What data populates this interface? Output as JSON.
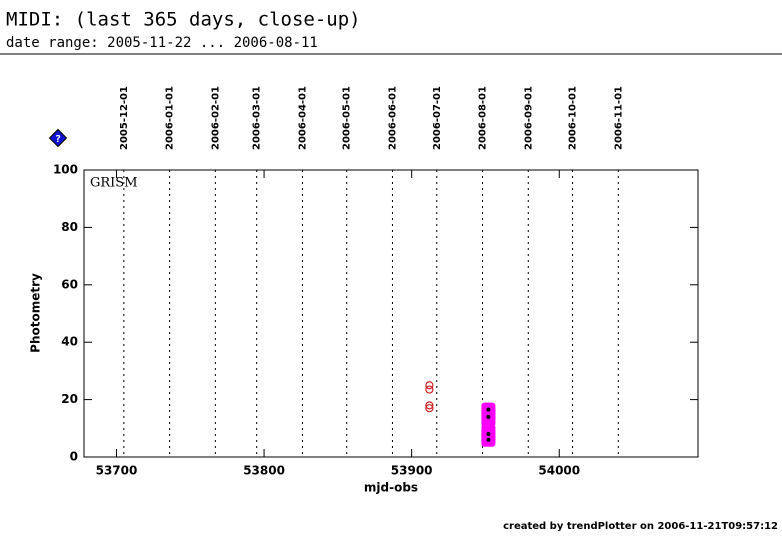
{
  "chart_data": {
    "type": "scatter",
    "title": "MIDI: (last 365 days, close-up)",
    "subtitle": "date range: 2005-11-22 ... 2006-08-11",
    "help_icon": "?",
    "annotation": "GRISM",
    "x_label": "mjd-obs",
    "y_label": "Photometry",
    "footer": "created by trendPlotter on 2006-11-21T09:57:12",
    "xlim": [
      53678,
      54094
    ],
    "ylim": [
      0,
      100
    ],
    "xticks": [
      53700,
      53800,
      53900,
      54000
    ],
    "yticks": [
      0,
      20,
      40,
      60,
      80,
      100
    ],
    "month_lines": [
      {
        "value": 53705,
        "label": "2005-12-01"
      },
      {
        "value": 53736,
        "label": "2006-01-01"
      },
      {
        "value": 53767,
        "label": "2006-02-01"
      },
      {
        "value": 53795,
        "label": "2006-03-01"
      },
      {
        "value": 53826,
        "label": "2006-04-01"
      },
      {
        "value": 53856,
        "label": "2006-05-01"
      },
      {
        "value": 53887,
        "label": "2006-06-01"
      },
      {
        "value": 53917,
        "label": "2006-07-01"
      },
      {
        "value": 53948,
        "label": "2006-08-01"
      },
      {
        "value": 53979,
        "label": "2006-09-01"
      },
      {
        "value": 54009,
        "label": "2006-10-01"
      },
      {
        "value": 54040,
        "label": "2006-11-01"
      }
    ],
    "series": [
      {
        "color": "#d02020",
        "marker": "open-circle",
        "x": [
          53912,
          53912,
          53912,
          53912
        ],
        "values": [
          25,
          23.5,
          18,
          17
        ]
      },
      {
        "color": "#ff00ff",
        "marker": "filled-square",
        "x": [
          53952,
          53952,
          53952,
          53952,
          53952,
          53952
        ],
        "values": [
          16.5,
          15,
          13,
          9,
          7.5,
          6
        ]
      },
      {
        "color": "#000000",
        "marker": "dot",
        "x": [
          53952,
          53952,
          53952,
          53952
        ],
        "values": [
          16.5,
          14,
          8,
          6
        ]
      }
    ]
  }
}
